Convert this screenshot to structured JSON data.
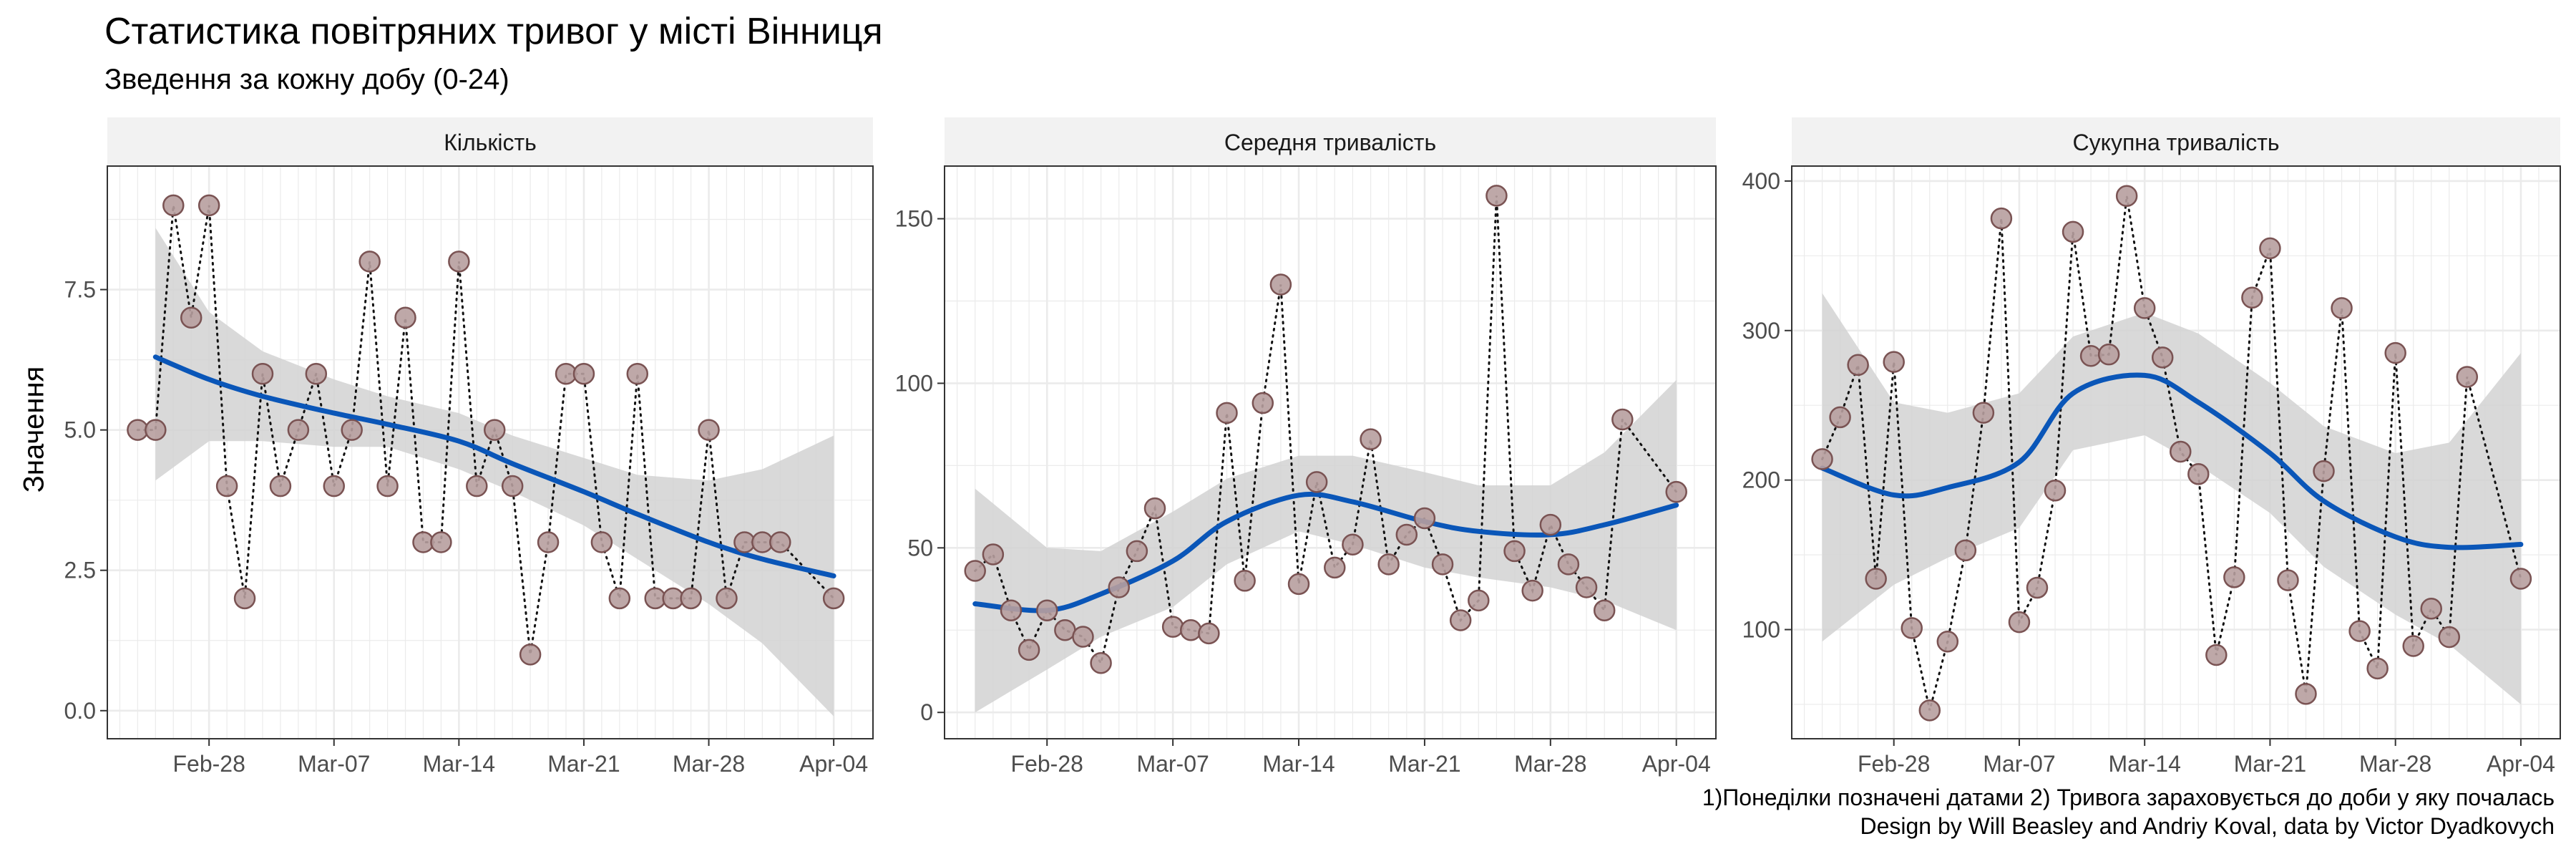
{
  "title": "Статистика повітряних тривог у місті Вінниця",
  "subtitle": "Зведення за кожну добу (0-24)",
  "y_title": "Значення",
  "caption_line1": "1)Понеділки позначені датами 2) Тривога зараховується до доби у яку почалась",
  "caption_line2": "Design by Will Beasley and Andriy Koval, data by Victor Dyadkovych",
  "colors": {
    "point_fill": "#b79f9f",
    "point_stroke": "#7a5353",
    "smooth": "#0a56b8",
    "ribbon": "#d2d2d2",
    "strip": "#f2f2f2",
    "grid": "#ebebeb",
    "panel_border": "#333333"
  },
  "chart_data": [
    {
      "type": "line",
      "panel": "Кількість",
      "x_ticks": [
        "Feb-28",
        "Mar-07",
        "Mar-14",
        "Mar-21",
        "Mar-28",
        "Apr-04"
      ],
      "y_ticks": [
        "0.0",
        "2.5",
        "5.0",
        "7.5"
      ],
      "ylim": [
        -0.5,
        9.7
      ],
      "grid": true,
      "x": [
        "Feb-24",
        "Feb-25",
        "Feb-26",
        "Feb-27",
        "Feb-28",
        "Mar-01",
        "Mar-02",
        "Mar-03",
        "Mar-04",
        "Mar-05",
        "Mar-06",
        "Mar-07",
        "Mar-08",
        "Mar-09",
        "Mar-10",
        "Mar-11",
        "Mar-12",
        "Mar-13",
        "Mar-14",
        "Mar-15",
        "Mar-16",
        "Mar-17",
        "Mar-18",
        "Mar-19",
        "Mar-20",
        "Mar-21",
        "Mar-22",
        "Mar-23",
        "Mar-24",
        "Mar-25",
        "Mar-26",
        "Mar-27",
        "Mar-28",
        "Mar-29",
        "Mar-30",
        "Mar-31",
        "Apr-01",
        "Apr-02",
        "Apr-03",
        "Apr-04"
      ],
      "values": [
        5,
        5,
        9,
        7,
        9,
        4,
        2,
        6,
        4,
        5,
        6,
        4,
        5,
        8,
        4,
        7,
        3,
        3,
        8,
        4,
        5,
        4,
        1,
        3,
        6,
        6,
        3,
        2,
        6,
        2,
        2,
        2,
        5,
        2,
        3,
        3,
        3,
        null,
        null,
        2
      ],
      "smooth": {
        "x": [
          "Feb-25",
          "Feb-28",
          "Mar-03",
          "Mar-07",
          "Mar-10",
          "Mar-14",
          "Mar-17",
          "Mar-21",
          "Mar-24",
          "Mar-28",
          "Mar-31",
          "Apr-04"
        ],
        "fit": [
          6.3,
          5.9,
          5.6,
          5.3,
          5.1,
          4.8,
          4.4,
          3.9,
          3.5,
          3.0,
          2.7,
          2.4
        ],
        "lower": [
          4.1,
          4.8,
          4.8,
          4.7,
          4.7,
          4.3,
          3.9,
          3.3,
          2.7,
          1.9,
          1.2,
          -0.1
        ],
        "upper": [
          8.6,
          7.1,
          6.4,
          5.9,
          5.6,
          5.3,
          4.9,
          4.5,
          4.2,
          4.1,
          4.3,
          4.9
        ]
      }
    },
    {
      "type": "line",
      "panel": "Середня тривалість",
      "x_ticks": [
        "Feb-28",
        "Mar-07",
        "Mar-14",
        "Mar-21",
        "Mar-28",
        "Apr-04"
      ],
      "y_ticks": [
        "0",
        "50",
        "100",
        "150"
      ],
      "ylim": [
        -8,
        166
      ],
      "grid": true,
      "x": [
        "Feb-24",
        "Feb-25",
        "Feb-26",
        "Feb-27",
        "Feb-28",
        "Mar-01",
        "Mar-02",
        "Mar-03",
        "Mar-04",
        "Mar-05",
        "Mar-06",
        "Mar-07",
        "Mar-08",
        "Mar-09",
        "Mar-10",
        "Mar-11",
        "Mar-12",
        "Mar-13",
        "Mar-14",
        "Mar-15",
        "Mar-16",
        "Mar-17",
        "Mar-18",
        "Mar-19",
        "Mar-20",
        "Mar-21",
        "Mar-22",
        "Mar-23",
        "Mar-24",
        "Mar-25",
        "Mar-26",
        "Mar-27",
        "Mar-28",
        "Mar-29",
        "Mar-30",
        "Mar-31",
        "Apr-01",
        "Apr-02",
        "Apr-03",
        "Apr-04"
      ],
      "values": [
        43,
        48,
        31,
        19,
        31,
        25,
        23,
        15,
        38,
        49,
        62,
        26,
        25,
        24,
        91,
        40,
        94,
        130,
        39,
        70,
        44,
        51,
        83,
        45,
        54,
        59,
        45,
        28,
        34,
        157,
        49,
        37,
        57,
        45,
        38,
        31,
        89,
        null,
        null,
        67
      ],
      "smooth": {
        "x": [
          "Feb-24",
          "Feb-28",
          "Mar-03",
          "Mar-07",
          "Mar-10",
          "Mar-14",
          "Mar-17",
          "Mar-21",
          "Mar-24",
          "Mar-28",
          "Mar-31",
          "Apr-04"
        ],
        "fit": [
          33,
          31,
          36,
          46,
          58,
          66,
          64,
          58,
          55,
          54,
          57,
          63
        ],
        "lower": [
          0,
          13,
          23,
          32,
          45,
          55,
          51,
          44,
          41,
          38,
          34,
          25
        ],
        "upper": [
          68,
          50,
          49,
          61,
          71,
          78,
          78,
          73,
          69,
          69,
          79,
          101
        ]
      }
    },
    {
      "type": "line",
      "panel": "Сукупна тривалість",
      "x_ticks": [
        "Feb-28",
        "Mar-07",
        "Mar-14",
        "Mar-21",
        "Mar-28",
        "Apr-04"
      ],
      "y_ticks": [
        "100",
        "200",
        "300",
        "400"
      ],
      "ylim": [
        27,
        410
      ],
      "grid": true,
      "x": [
        "Feb-24",
        "Feb-25",
        "Feb-26",
        "Feb-27",
        "Feb-28",
        "Mar-01",
        "Mar-02",
        "Mar-03",
        "Mar-04",
        "Mar-05",
        "Mar-06",
        "Mar-07",
        "Mar-08",
        "Mar-09",
        "Mar-10",
        "Mar-11",
        "Mar-12",
        "Mar-13",
        "Mar-14",
        "Mar-15",
        "Mar-16",
        "Mar-17",
        "Mar-18",
        "Mar-19",
        "Mar-20",
        "Mar-21",
        "Mar-22",
        "Mar-23",
        "Mar-24",
        "Mar-25",
        "Mar-26",
        "Mar-27",
        "Mar-28",
        "Mar-29",
        "Mar-30",
        "Mar-31",
        "Apr-01",
        "Apr-02",
        "Apr-03",
        "Apr-04"
      ],
      "values": [
        214,
        242,
        277,
        134,
        279,
        101,
        46,
        92,
        153,
        245,
        375,
        105,
        128,
        193,
        366,
        283,
        284,
        390,
        315,
        282,
        219,
        204,
        83,
        135,
        322,
        355,
        133,
        57,
        206,
        315,
        99,
        74,
        285,
        89,
        114,
        95,
        269,
        null,
        null,
        134
      ],
      "smooth": {
        "x": [
          "Feb-24",
          "Feb-28",
          "Mar-03",
          "Mar-07",
          "Mar-10",
          "Mar-14",
          "Mar-17",
          "Mar-21",
          "Mar-24",
          "Mar-28",
          "Mar-31",
          "Apr-04"
        ],
        "fit": [
          208,
          190,
          195,
          212,
          258,
          270,
          252,
          218,
          186,
          162,
          155,
          157
        ],
        "lower": [
          92,
          130,
          148,
          168,
          220,
          230,
          210,
          178,
          142,
          110,
          90,
          50
        ],
        "upper": [
          325,
          252,
          245,
          258,
          296,
          312,
          298,
          265,
          236,
          218,
          225,
          285
        ]
      }
    }
  ]
}
